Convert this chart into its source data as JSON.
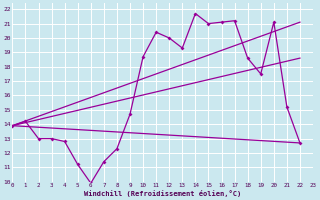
{
  "background_color": "#cbe8ef",
  "grid_color": "#ffffff",
  "line_color": "#990099",
  "tick_color": "#550055",
  "x_label": "Windchill (Refroidissement éolien,°C)",
  "xlim": [
    0,
    23
  ],
  "ylim": [
    10,
    22.4
  ],
  "yticks": [
    10,
    11,
    12,
    13,
    14,
    15,
    16,
    17,
    18,
    19,
    20,
    21,
    22
  ],
  "xticks": [
    0,
    1,
    2,
    3,
    4,
    5,
    6,
    7,
    8,
    9,
    10,
    11,
    12,
    13,
    14,
    15,
    16,
    17,
    18,
    19,
    20,
    21,
    22,
    23
  ],
  "series1_x": [
    0,
    1,
    2,
    3,
    4,
    5,
    6,
    7,
    8,
    9,
    10,
    11,
    12,
    13,
    14,
    15,
    16,
    17,
    18,
    19,
    20,
    21,
    22
  ],
  "series1_y": [
    13.9,
    14.2,
    13.0,
    13.0,
    12.8,
    11.2,
    9.9,
    11.4,
    12.3,
    14.7,
    18.7,
    20.4,
    20.0,
    19.3,
    21.7,
    21.0,
    21.1,
    21.2,
    18.6,
    17.5,
    21.1,
    15.2,
    12.7
  ],
  "series2_x": [
    0,
    22
  ],
  "series2_y": [
    13.9,
    12.7
  ],
  "series3_x": [
    0,
    22
  ],
  "series3_y": [
    13.9,
    21.1
  ],
  "series4_x": [
    0,
    22
  ],
  "series4_y": [
    13.9,
    18.6
  ]
}
